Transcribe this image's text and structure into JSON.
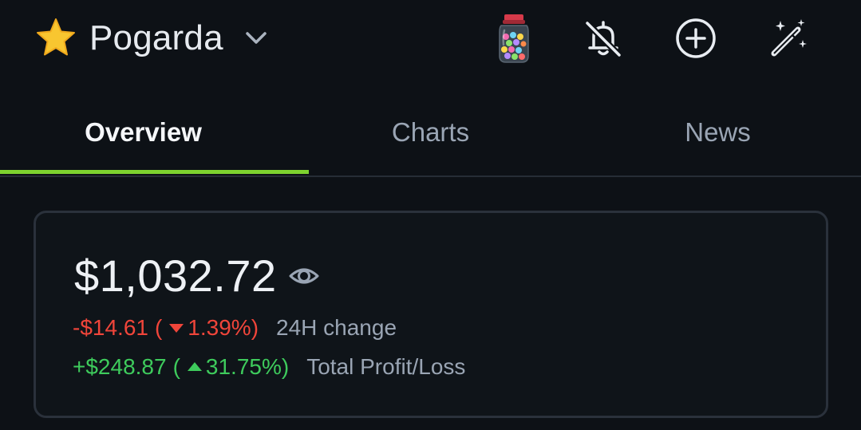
{
  "header": {
    "portfolio_name": "Pogarda",
    "icons": [
      "star-icon",
      "chevron-down-icon",
      "candy-jar-icon",
      "bell-off-icon",
      "add-circle-icon",
      "magic-wand-icon"
    ]
  },
  "tabs": [
    {
      "label": "Overview",
      "active": true
    },
    {
      "label": "Charts",
      "active": false
    },
    {
      "label": "News",
      "active": false
    }
  ],
  "summary": {
    "balance": "$1,032.72",
    "change_24h": {
      "amount": "-$14.61",
      "open": "(",
      "percent": "1.39%)",
      "label": "24H change",
      "direction": "down",
      "color": "#f0453a"
    },
    "total_pl": {
      "amount": "+$248.87",
      "open": "(",
      "percent": "31.75%)",
      "label": "Total Profit/Loss",
      "direction": "up",
      "color": "#3ecb5c"
    }
  },
  "colors": {
    "background": "#0d1116",
    "accent": "#7ed32f",
    "card_border": "#2a313b"
  }
}
